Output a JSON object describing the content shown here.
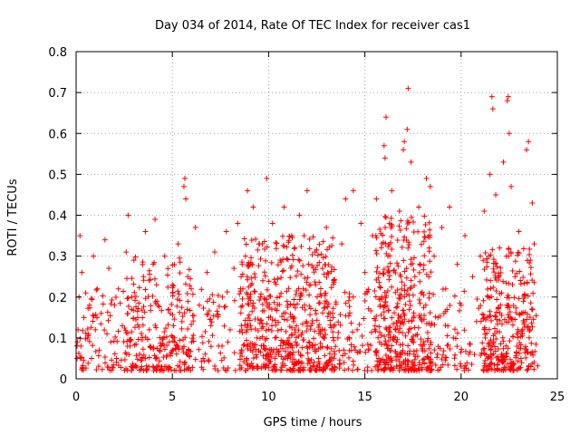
{
  "chart_data": {
    "type": "scatter",
    "title": "Day 034 of 2014, Rate Of TEC Index for receiver cas1",
    "xlabel": "GPS time / hours",
    "ylabel": "ROTI / TECUs",
    "xlim": [
      0,
      25
    ],
    "ylim": [
      0,
      0.8
    ],
    "xticks": [
      0,
      5,
      10,
      15,
      20,
      25
    ],
    "xtick_labels": [
      "0",
      "5",
      "10",
      "15",
      "20",
      "25"
    ],
    "yticks": [
      0,
      0.1,
      0.2,
      0.3,
      0.4,
      0.5,
      0.6,
      0.7,
      0.8
    ],
    "ytick_labels": [
      "0",
      "0.1",
      "0.2",
      "0.3",
      "0.4",
      "0.5",
      "0.6",
      "0.7",
      "0.8"
    ],
    "grid": true,
    "marker": "+",
    "color": "#ff0000",
    "series": [
      {
        "name": "cas1",
        "points": [
          [
            0.05,
            0.05
          ],
          [
            0.1,
            0.12
          ],
          [
            0.15,
            0.2
          ],
          [
            0.2,
            0.35
          ],
          [
            0.25,
            0.08
          ],
          [
            0.3,
            0.26
          ],
          [
            0.4,
            0.15
          ],
          [
            0.5,
            0.21
          ],
          [
            0.6,
            0.1
          ],
          [
            0.7,
            0.18
          ],
          [
            0.8,
            0.05
          ],
          [
            0.9,
            0.3
          ],
          [
            1.0,
            0.12
          ],
          [
            1.1,
            0.22
          ],
          [
            1.2,
            0.07
          ],
          [
            1.3,
            0.16
          ],
          [
            1.5,
            0.34
          ],
          [
            1.6,
            0.11
          ],
          [
            1.7,
            0.27
          ],
          [
            1.8,
            0.09
          ],
          [
            2.0,
            0.18
          ],
          [
            2.1,
            0.05
          ],
          [
            2.2,
            0.22
          ],
          [
            2.4,
            0.13
          ],
          [
            2.6,
            0.31
          ],
          [
            2.7,
            0.4
          ],
          [
            2.8,
            0.08
          ],
          [
            2.9,
            0.2
          ],
          [
            3.0,
            0.29
          ],
          [
            3.2,
            0.15
          ],
          [
            3.3,
            0.06
          ],
          [
            3.5,
            0.25
          ],
          [
            3.6,
            0.36
          ],
          [
            3.8,
            0.12
          ],
          [
            4.0,
            0.28
          ],
          [
            4.1,
            0.39
          ],
          [
            4.2,
            0.19
          ],
          [
            4.4,
            0.08
          ],
          [
            4.6,
            0.3
          ],
          [
            4.8,
            0.17
          ],
          [
            5.0,
            0.23
          ],
          [
            5.1,
            0.1
          ],
          [
            5.3,
            0.33
          ],
          [
            5.5,
            0.14
          ],
          [
            5.6,
            0.47
          ],
          [
            5.65,
            0.49
          ],
          [
            5.7,
            0.44
          ],
          [
            5.8,
            0.25
          ],
          [
            6.0,
            0.09
          ],
          [
            6.2,
            0.37
          ],
          [
            6.4,
            0.18
          ],
          [
            6.6,
            0.05
          ],
          [
            6.8,
            0.26
          ],
          [
            7.0,
            0.13
          ],
          [
            7.2,
            0.31
          ],
          [
            7.4,
            0.08
          ],
          [
            7.6,
            0.2
          ],
          [
            7.8,
            0.36
          ],
          [
            8.0,
            0.12
          ],
          [
            8.2,
            0.27
          ],
          [
            8.4,
            0.38
          ],
          [
            8.6,
            0.07
          ],
          [
            8.8,
            0.3
          ],
          [
            8.9,
            0.46
          ],
          [
            9.0,
            0.2
          ],
          [
            9.2,
            0.42
          ],
          [
            9.4,
            0.1
          ],
          [
            9.5,
            0.33
          ],
          [
            9.7,
            0.24
          ],
          [
            9.9,
            0.49
          ],
          [
            10.0,
            0.15
          ],
          [
            10.2,
            0.38
          ],
          [
            10.4,
            0.06
          ],
          [
            10.6,
            0.29
          ],
          [
            10.8,
            0.42
          ],
          [
            11.0,
            0.18
          ],
          [
            11.2,
            0.35
          ],
          [
            11.4,
            0.09
          ],
          [
            11.6,
            0.4
          ],
          [
            11.8,
            0.22
          ],
          [
            12.0,
            0.46
          ],
          [
            12.2,
            0.13
          ],
          [
            12.4,
            0.31
          ],
          [
            12.6,
            0.05
          ],
          [
            12.8,
            0.27
          ],
          [
            13.0,
            0.37
          ],
          [
            13.2,
            0.16
          ],
          [
            13.4,
            0.24
          ],
          [
            13.6,
            0.1
          ],
          [
            13.8,
            0.33
          ],
          [
            14.0,
            0.44
          ],
          [
            14.2,
            0.2
          ],
          [
            14.4,
            0.46
          ],
          [
            14.6,
            0.12
          ],
          [
            14.8,
            0.38
          ],
          [
            15.0,
            0.26
          ],
          [
            15.2,
            0.07
          ],
          [
            15.4,
            0.35
          ],
          [
            15.6,
            0.44
          ],
          [
            15.8,
            0.18
          ],
          [
            16.0,
            0.57
          ],
          [
            16.05,
            0.54
          ],
          [
            16.1,
            0.64
          ],
          [
            16.2,
            0.3
          ],
          [
            16.4,
            0.46
          ],
          [
            16.6,
            0.12
          ],
          [
            16.8,
            0.41
          ],
          [
            17.0,
            0.56
          ],
          [
            17.05,
            0.58
          ],
          [
            17.2,
            0.61
          ],
          [
            17.25,
            0.71
          ],
          [
            17.4,
            0.53
          ],
          [
            17.6,
            0.25
          ],
          [
            17.8,
            0.42
          ],
          [
            18.0,
            0.08
          ],
          [
            18.2,
            0.49
          ],
          [
            18.4,
            0.47
          ],
          [
            18.6,
            0.3
          ],
          [
            18.8,
            0.15
          ],
          [
            19.0,
            0.37
          ],
          [
            19.2,
            0.22
          ],
          [
            19.4,
            0.42
          ],
          [
            19.6,
            0.1
          ],
          [
            19.8,
            0.28
          ],
          [
            20.0,
            0.18
          ],
          [
            20.2,
            0.35
          ],
          [
            20.4,
            0.06
          ],
          [
            20.6,
            0.25
          ],
          [
            20.8,
            0.14
          ],
          [
            21.0,
            0.3
          ],
          [
            21.2,
            0.41
          ],
          [
            21.4,
            0.2
          ],
          [
            21.5,
            0.5
          ],
          [
            21.6,
            0.69
          ],
          [
            21.65,
            0.66
          ],
          [
            21.8,
            0.45
          ],
          [
            22.0,
            0.32
          ],
          [
            22.2,
            0.53
          ],
          [
            22.4,
            0.68
          ],
          [
            22.45,
            0.69
          ],
          [
            22.5,
            0.6
          ],
          [
            22.6,
            0.47
          ],
          [
            22.8,
            0.25
          ],
          [
            23.0,
            0.36
          ],
          [
            23.2,
            0.12
          ],
          [
            23.4,
            0.56
          ],
          [
            23.5,
            0.58
          ],
          [
            23.6,
            0.29
          ],
          [
            23.7,
            0.43
          ],
          [
            23.8,
            0.33
          ]
        ],
        "dense_bands": [
          {
            "x0": 0.0,
            "x1": 24.0,
            "ymin": 0.02,
            "ymax": 0.22,
            "count": 700
          },
          {
            "x0": 2.5,
            "x1": 6.0,
            "ymin": 0.02,
            "ymax": 0.3,
            "count": 150
          },
          {
            "x0": 8.5,
            "x1": 13.5,
            "ymin": 0.02,
            "ymax": 0.35,
            "count": 420
          },
          {
            "x0": 15.5,
            "x1": 18.5,
            "ymin": 0.02,
            "ymax": 0.4,
            "count": 300
          },
          {
            "x0": 21.0,
            "x1": 23.8,
            "ymin": 0.02,
            "ymax": 0.32,
            "count": 220
          }
        ]
      }
    ]
  }
}
